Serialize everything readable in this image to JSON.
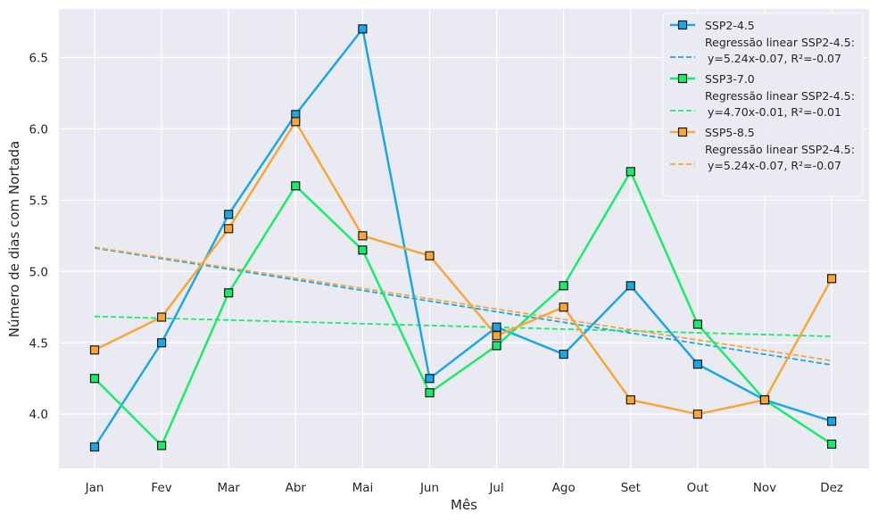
{
  "chart_data": {
    "type": "line",
    "xlabel": "Mês",
    "ylabel": "Número de dias com Nortada",
    "categories": [
      "Jan",
      "Fev",
      "Mar",
      "Abr",
      "Mai",
      "Jun",
      "Jul",
      "Ago",
      "Set",
      "Out",
      "Nov",
      "Dez"
    ],
    "yticks": [
      "4.0",
      "4.5",
      "5.0",
      "5.5",
      "6.0",
      "6.5"
    ],
    "ylim": [
      3.62,
      6.84
    ],
    "grid": true,
    "legend_position": "top-right",
    "series": [
      {
        "name": "SSP2-4.5",
        "color": "#1aa7e6",
        "values": [
          3.77,
          4.5,
          5.4,
          6.1,
          6.7,
          4.25,
          4.61,
          4.42,
          4.9,
          4.35,
          4.1,
          3.95
        ],
        "trend_label": [
          "Regressão linear SSP2-4.5:",
          "y=5.24x-0.07, R²=-0.07"
        ],
        "trend_start": 5.165,
        "trend_end": 4.345
      },
      {
        "name": "SSP3-7.0",
        "color": "#1aeb6a",
        "values": [
          4.25,
          3.78,
          4.85,
          5.6,
          5.15,
          4.15,
          4.48,
          4.9,
          5.7,
          4.63,
          4.1,
          3.79
        ],
        "trend_label": [
          "Regressão linear SSP2-4.5:",
          "y=4.70x-0.01, R²=-0.01"
        ],
        "trend_start": 4.685,
        "trend_end": 4.545
      },
      {
        "name": "SSP5-8.5",
        "color": "#f7a637",
        "values": [
          4.45,
          4.68,
          5.3,
          6.05,
          5.25,
          5.11,
          4.55,
          4.75,
          4.1,
          4.0,
          4.1,
          4.95
        ],
        "trend_label": [
          "Regressão linear SSP2-4.5:",
          "y=5.24x-0.07, R²=-0.07"
        ],
        "trend_start": 5.17,
        "trend_end": 4.375
      }
    ]
  }
}
